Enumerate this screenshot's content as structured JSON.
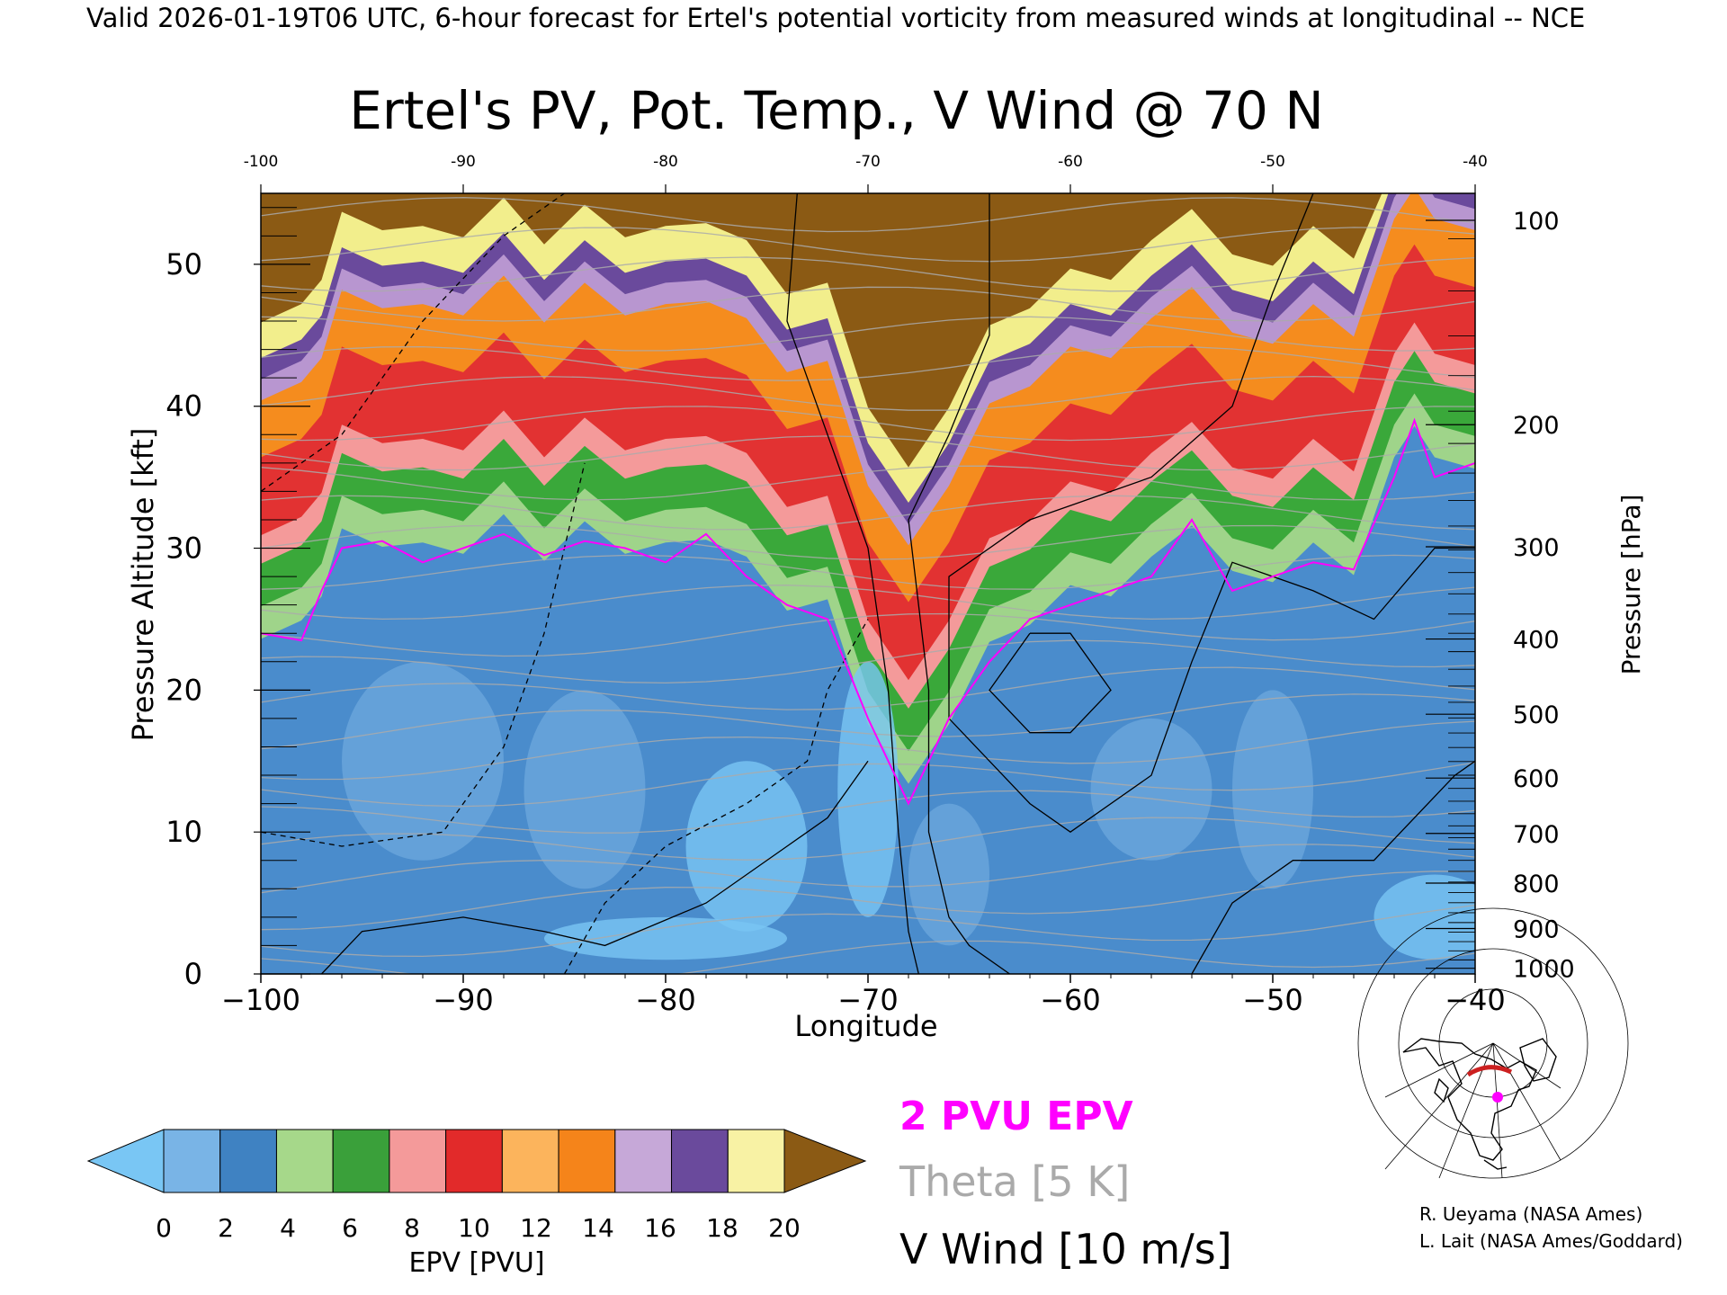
{
  "header": {
    "valid_line": "Valid 2026-01-19T06 UTC, 6-hour forecast for Ertel's potential vorticity from measured winds at longitudinal -- NCE"
  },
  "chart_data": {
    "type": "heatmap",
    "title": "Ertel's PV, Pot. Temp., V Wind @ 70 N",
    "xlabel": "Longitude",
    "ylabel": "Pressure Altitude [kft]",
    "y2label": "Pressure [hPa]",
    "xlim": [
      -100,
      -40
    ],
    "ylim": [
      0,
      55
    ],
    "x_ticks": [
      -100,
      -90,
      -80,
      -70,
      -60,
      -50,
      -40
    ],
    "x_tick_labels": [
      "−100",
      "−90",
      "−80",
      "−70",
      "−60",
      "−50",
      "−40"
    ],
    "top_x_tick_labels": [
      "-100",
      "-90",
      "-80",
      "-70",
      "-60",
      "-50",
      "-40"
    ],
    "y_ticks": [
      0,
      10,
      20,
      30,
      40,
      50
    ],
    "y_tick_labels": [
      "0",
      "10",
      "20",
      "30",
      "40",
      "50"
    ],
    "pressure_ticks": [
      {
        "label": "100",
        "kft": 53.1
      },
      {
        "label": "200",
        "kft": 38.7
      },
      {
        "label": "300",
        "kft": 30.1
      },
      {
        "label": "400",
        "kft": 23.6
      },
      {
        "label": "500",
        "kft": 18.3
      },
      {
        "label": "600",
        "kft": 13.8
      },
      {
        "label": "700",
        "kft": 9.9
      },
      {
        "label": "800",
        "kft": 6.4
      },
      {
        "label": "900",
        "kft": 3.2
      },
      {
        "label": "1000",
        "kft": 0.4
      }
    ],
    "layers": [
      {
        "name": "low",
        "color": "#4a8ccc",
        "pts": []
      },
      {
        "name": "green",
        "color": "#3aa83a"
      },
      {
        "name": "red",
        "color": "#e23232"
      },
      {
        "name": "orange",
        "color": "#f58c1e"
      },
      {
        "name": "purple",
        "color": "#8a6ab8"
      },
      {
        "name": "yellow",
        "color": "#f2ee8c"
      },
      {
        "name": "brown",
        "color": "#8b5a14"
      }
    ],
    "pv2_boundary": [
      [
        -100,
        24.0
      ],
      [
        -98,
        23.5
      ],
      [
        -97,
        27.0
      ],
      [
        -96,
        30.0
      ],
      [
        -94,
        30.5
      ],
      [
        -92,
        29.0
      ],
      [
        -90,
        30.0
      ],
      [
        -88,
        31.0
      ],
      [
        -86,
        29.5
      ],
      [
        -84,
        30.5
      ],
      [
        -82,
        30.0
      ],
      [
        -80,
        29.0
      ],
      [
        -78,
        31.0
      ],
      [
        -76,
        28.0
      ],
      [
        -74,
        26.0
      ],
      [
        -72,
        25.0
      ],
      [
        -70,
        18.0
      ],
      [
        -68,
        12.0
      ],
      [
        -66,
        18.0
      ],
      [
        -64,
        22.0
      ],
      [
        -62,
        25.0
      ],
      [
        -60,
        26.0
      ],
      [
        -58,
        27.0
      ],
      [
        -56,
        28.0
      ],
      [
        -54,
        32.0
      ],
      [
        -52,
        27.0
      ],
      [
        -50,
        28.0
      ],
      [
        -48,
        29.0
      ],
      [
        -46,
        28.5
      ],
      [
        -44,
        35.0
      ],
      [
        -43,
        39.0
      ],
      [
        -42,
        35.0
      ],
      [
        -40,
        36.0
      ]
    ],
    "colorbar": {
      "label": "EPV [PVU]",
      "ticks": [
        "0",
        "2",
        "4",
        "6",
        "8",
        "10",
        "12",
        "14",
        "16",
        "18",
        "20"
      ],
      "colors": [
        "#79b4e6",
        "#3f82c2",
        "#a6d88a",
        "#3aa03a",
        "#f49a9a",
        "#e22a2a",
        "#fcb45c",
        "#f5841a",
        "#c6a8d8",
        "#6a4a9c",
        "#f8f2a4"
      ],
      "under_color": "#79c6f4",
      "over_color": "#8b5a14"
    },
    "legend": {
      "pv_label": "2 PVU EPV",
      "theta_label": "Theta [5 K]",
      "wind_label": "V Wind [10 m/s]",
      "pv_color": "#ff00ff",
      "theta_color": "#aaaaaa",
      "wind_color": "#000000"
    }
  },
  "credits": {
    "line1": "R. Ueyama (NASA Ames)",
    "line2": "L. Lait (NASA Ames/Goddard)"
  }
}
